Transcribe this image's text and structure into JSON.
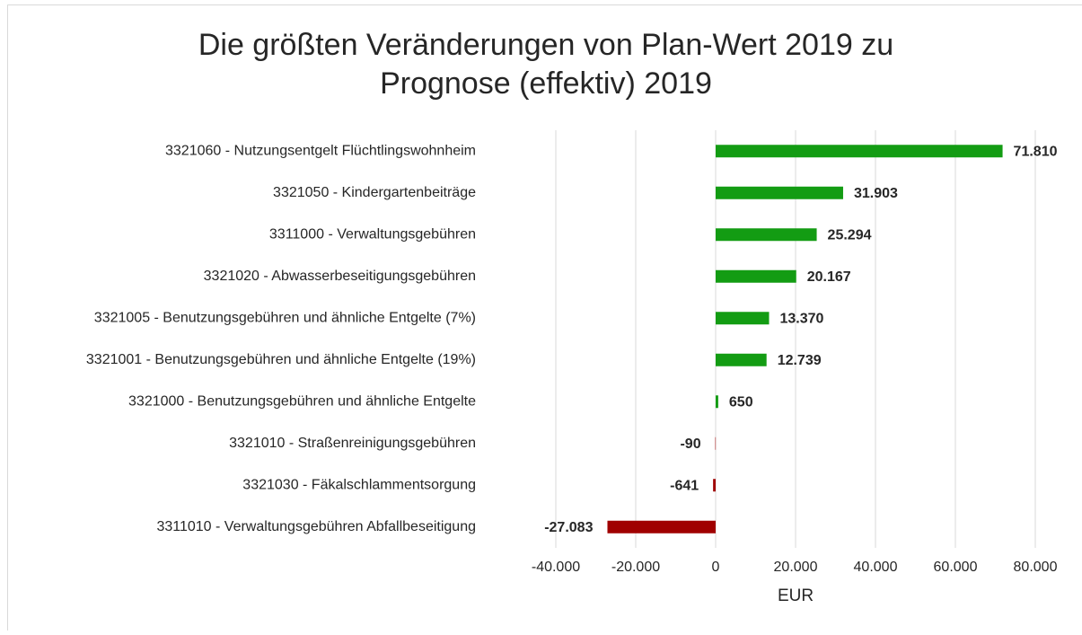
{
  "chart_data": {
    "type": "bar",
    "orientation": "horizontal",
    "title": [
      "Die größten Veränderungen von Plan-Wert 2019 zu",
      "Prognose (effektiv) 2019"
    ],
    "x_label": "EUR",
    "categories": [
      "3321060 - Nutzungsentgelt Flüchtlingswohnheim",
      "3321050 - Kindergartenbeiträge",
      "3311000 - Verwaltungsgebühren",
      "3321020 - Abwasserbeseitigungsgebühren",
      "3321005 - Benutzungsgebühren und ähnliche Entgelte (7%)",
      "3321001 - Benutzungsgebühren und ähnliche Entgelte (19%)",
      "3321000 - Benutzungsgebühren und ähnliche Entgelte",
      "3321010 - Straßenreinigungsgebühren",
      "3321030 - Fäkalschlammentsorgung",
      "3311010 - Verwaltungsgebühren Abfallbeseitigung"
    ],
    "values": [
      71810,
      31903,
      25294,
      20167,
      13370,
      12739,
      650,
      -90,
      -641,
      -27083
    ],
    "value_labels": [
      "71.810",
      "31.903",
      "25.294",
      "20.167",
      "13.370",
      "12.739",
      "650",
      "-90",
      "-641",
      "-27.083"
    ],
    "colors": [
      "#139c13",
      "#139c13",
      "#139c13",
      "#139c13",
      "#139c13",
      "#139c13",
      "#139c13",
      "#a00000",
      "#a00000",
      "#a00000"
    ],
    "xlim": [
      -40000,
      80000
    ],
    "xticks": [
      {
        "value": -40000,
        "label": "-40.000"
      },
      {
        "value": -20000,
        "label": "-20.000"
      },
      0,
      {
        "value": 20000,
        "label": "20.000"
      },
      {
        "value": 40000,
        "label": "40.000"
      },
      {
        "value": 60000,
        "label": "60.000"
      },
      {
        "value": 80000,
        "label": "80.000"
      }
    ],
    "grid": true
  }
}
